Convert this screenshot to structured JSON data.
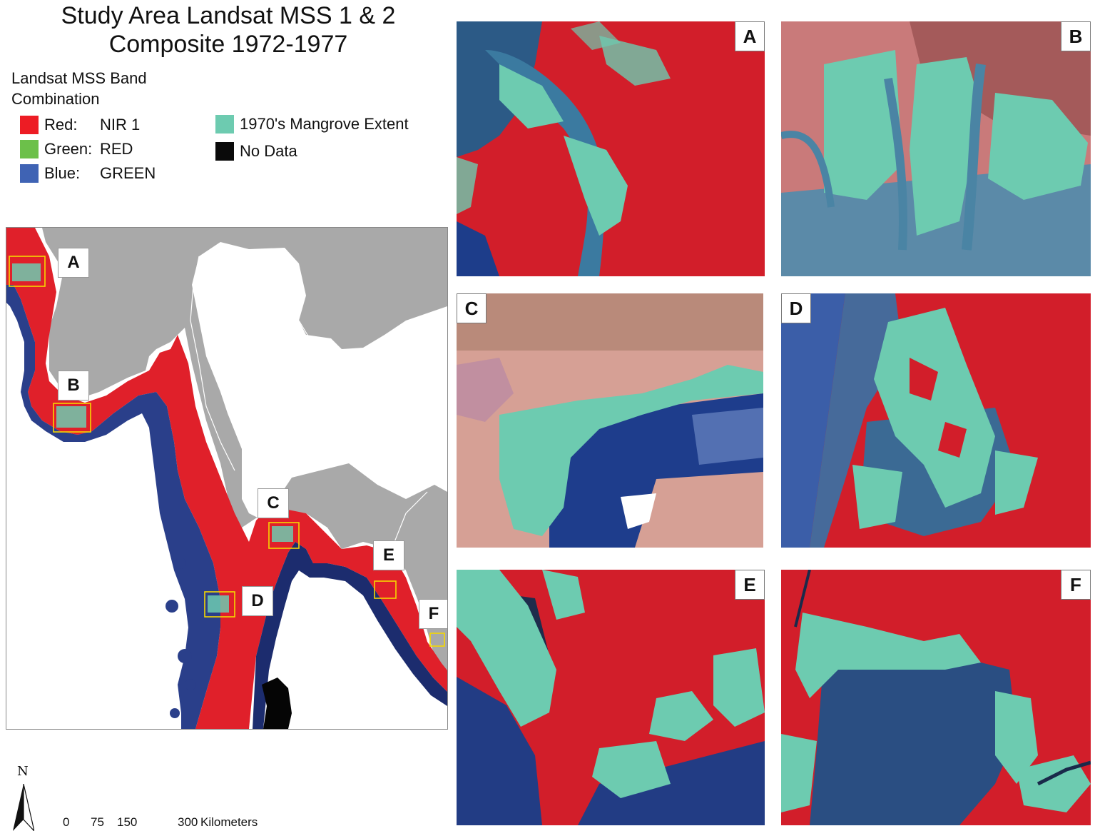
{
  "title": {
    "line1": "Study Area Landsat MSS 1 & 2",
    "line2": "Composite 1972-1977"
  },
  "legend": {
    "heading_line1": "Landsat MSS Band",
    "heading_line2": "Combination",
    "bands": [
      {
        "channel": "Red:",
        "band": "NIR 1",
        "color": "#ed1c24"
      },
      {
        "channel": "Green:",
        "band": "RED",
        "color": "#6cc04a"
      },
      {
        "channel": "Blue:",
        "band": "GREEN",
        "color": "#3f63b4"
      }
    ],
    "classes": [
      {
        "label": "1970's Mangrove Extent",
        "color": "#6dcbb0"
      },
      {
        "label": "No Data",
        "color": "#0a0a0a"
      }
    ]
  },
  "overview": {
    "labels": [
      "A",
      "B",
      "C",
      "D",
      "E",
      "F"
    ],
    "land_color": "#a9a9a9",
    "imagery_color": "#e0202a",
    "water_color": "#2a3f8a",
    "box_color": "#f5d800"
  },
  "panels": [
    {
      "id": "A",
      "label": "A"
    },
    {
      "id": "B",
      "label": "B"
    },
    {
      "id": "C",
      "label": "C"
    },
    {
      "id": "D",
      "label": "D"
    },
    {
      "id": "E",
      "label": "E"
    },
    {
      "id": "F",
      "label": "F"
    }
  ],
  "north": {
    "letter": "N"
  },
  "scale": {
    "ticks": [
      "0",
      "75",
      "150",
      "300"
    ],
    "unit": "Kilometers"
  }
}
